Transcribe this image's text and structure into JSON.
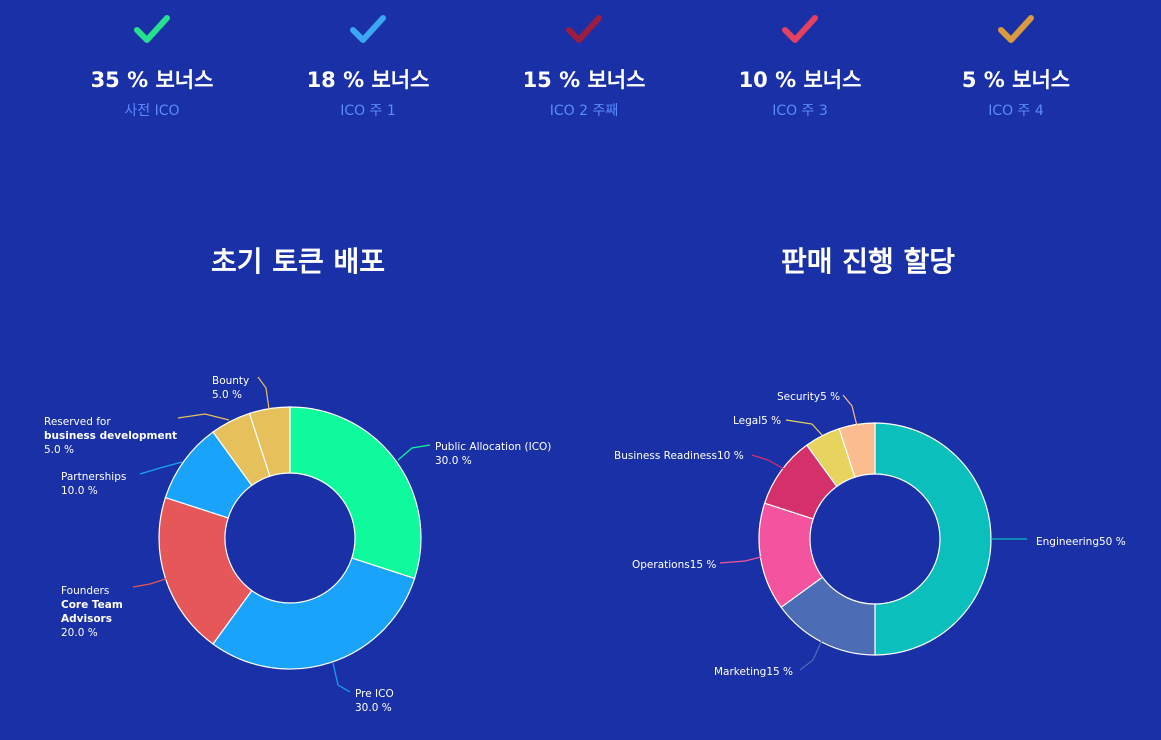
{
  "bonuses": [
    {
      "percent": "35 % 보너스",
      "stage": "사전 ICO",
      "color": "#25e08e"
    },
    {
      "percent": "18 % 보너스",
      "stage": "ICO 주 1",
      "color": "#3ba6f2"
    },
    {
      "percent": "15 % 보너스",
      "stage": "ICO 2 주째",
      "color": "#9b1d3f"
    },
    {
      "percent": "10 % 보너스",
      "stage": "ICO 주 3",
      "color": "#e4405f"
    },
    {
      "percent": "5 % 보너스",
      "stage": "ICO 주 4",
      "color": "#d99a40"
    }
  ],
  "titles": {
    "left": "초기 토큰 배포",
    "right": "판매 진행 할당"
  },
  "chart_data": [
    {
      "type": "pie",
      "title": "초기 토큰 배포",
      "slices": [
        {
          "lines": [
            "Public Allocation (ICO)",
            "30.0 %"
          ],
          "value": 30.0,
          "color": "#0ff99d"
        },
        {
          "lines": [
            "Pre ICO",
            "30.0 %"
          ],
          "value": 30.0,
          "color": "#1aa3fb"
        },
        {
          "lines": [
            "Founders",
            "Core Team",
            "Advisors",
            "20.0 %"
          ],
          "value": 20.0,
          "color": "#e55759"
        },
        {
          "lines": [
            "Partnerships",
            "10.0 %"
          ],
          "value": 10.0,
          "color": "#1aa3fb"
        },
        {
          "lines": [
            "Reserved for",
            "business development",
            "5.0 %"
          ],
          "value": 5.0,
          "color": "#e6c05a"
        },
        {
          "lines": [
            "Bounty",
            "5.0 %"
          ],
          "value": 5.0,
          "color": "#e6c05a"
        }
      ]
    },
    {
      "type": "pie",
      "title": "판매 진행 할당",
      "slices": [
        {
          "lines": [
            "Engineering50 %"
          ],
          "value": 50,
          "color": "#0bbfbc"
        },
        {
          "lines": [
            "Marketing15 %"
          ],
          "value": 15,
          "color": "#4c6db5"
        },
        {
          "lines": [
            "Operations15 %"
          ],
          "value": 15,
          "color": "#f4549d"
        },
        {
          "lines": [
            "Business Readiness10 %"
          ],
          "value": 10,
          "color": "#d5306a"
        },
        {
          "lines": [
            "Legal5 %"
          ],
          "value": 5,
          "color": "#e6d45e"
        },
        {
          "lines": [
            "Security5 %"
          ],
          "value": 5,
          "color": "#fbbd8f"
        }
      ]
    }
  ]
}
